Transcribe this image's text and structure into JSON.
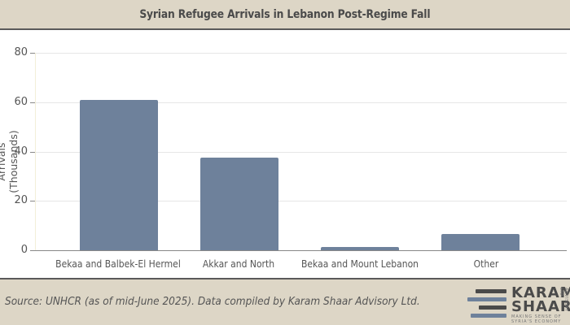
{
  "header": {
    "title": "Syrian Refugee Arrivals in Lebanon Post-Regime Fall"
  },
  "footer": {
    "source": "Source: UNHCR (as of mid-June 2025). Data compiled by Karam Shaar Advisory Ltd.",
    "logo": {
      "line1": "KARAM",
      "line2": "SHAAR",
      "tagline1": "MAKING SENSE OF",
      "tagline2": "SYRIA'S ECONOMY",
      "vertical": "ADVISORY LTD."
    }
  },
  "colors": {
    "bar": "#6e819b",
    "header_bg": "#ddd6c6",
    "text": "#555555"
  },
  "chart_data": {
    "type": "bar",
    "title": "Syrian Refugee Arrivals in Lebanon Post-Regime Fall",
    "xlabel": "",
    "ylabel": "Arrivals (Thousands)",
    "categories": [
      "Bekaa and Balbek-El Hermel",
      "Akkar and North",
      "Bekaa and Mount Lebanon",
      "Other"
    ],
    "values": [
      60.8,
      37.5,
      1.4,
      6.6
    ],
    "ylim": [
      0,
      80
    ],
    "yticks": [
      "0",
      "20",
      "40",
      "60",
      "80"
    ],
    "grid": true,
    "legend": null
  }
}
